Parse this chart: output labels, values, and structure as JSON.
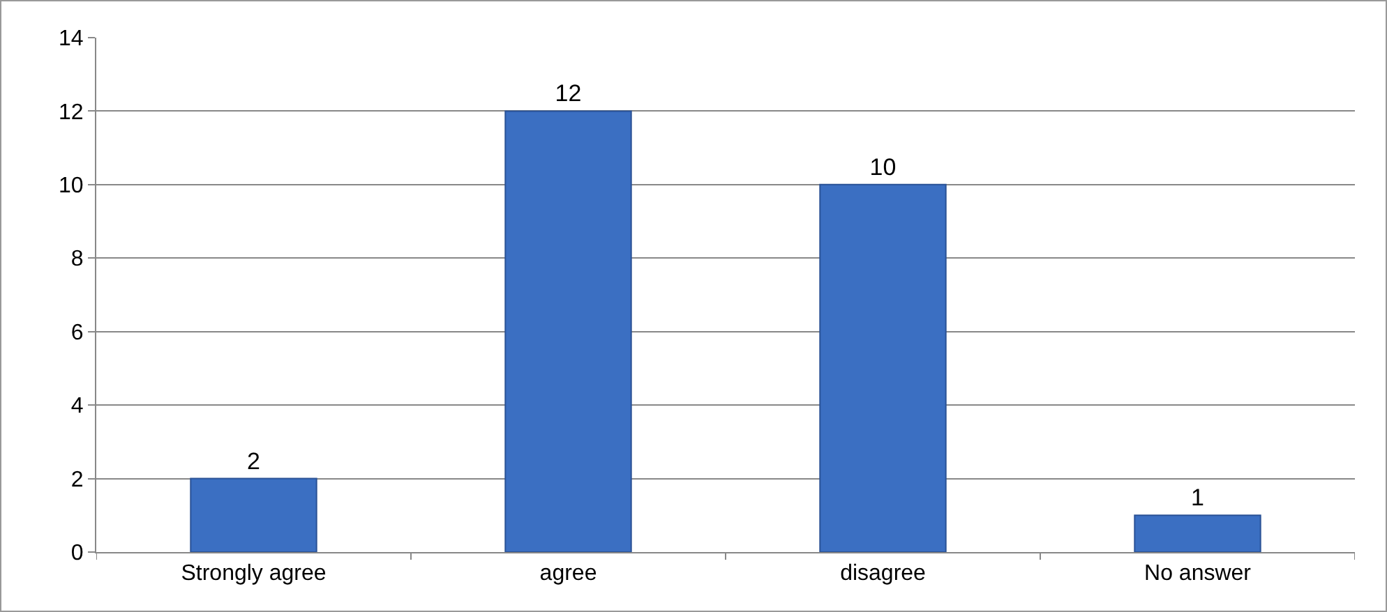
{
  "chart_data": {
    "type": "bar",
    "categories": [
      "Strongly agree",
      "agree",
      "disagree",
      "No answer"
    ],
    "values": [
      2,
      12,
      10,
      1
    ],
    "color": "#3b6fc2",
    "ylim": [
      0,
      14
    ],
    "yticks": [
      0,
      2,
      4,
      6,
      8,
      10,
      12,
      14
    ],
    "grid": "y",
    "data_labels": true
  }
}
